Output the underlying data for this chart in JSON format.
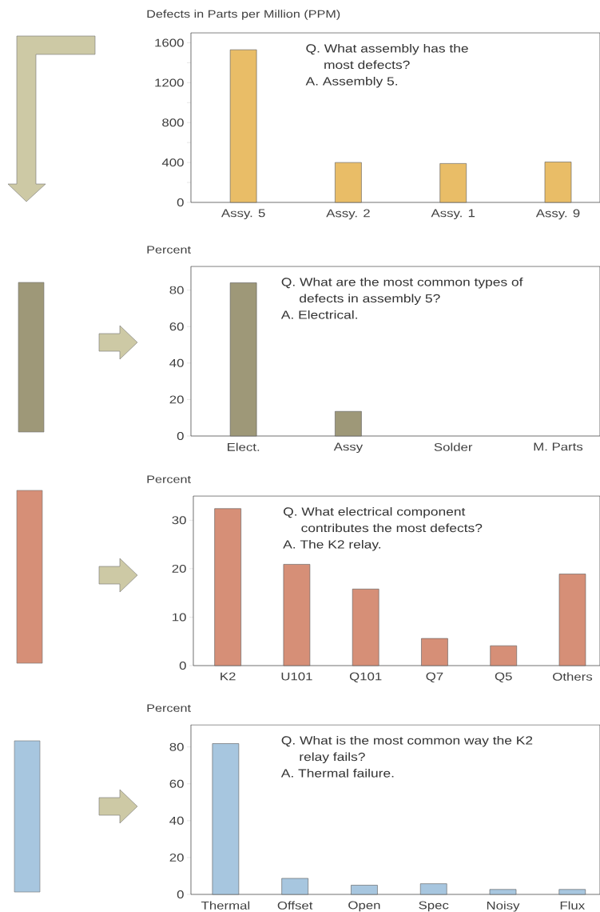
{
  "chart_data": [
    {
      "type": "bar",
      "ylabel": "Defects in Parts per Million (PPM)",
      "categories": [
        "Assy. 5",
        "Assy. 2",
        "Assy. 1",
        "Assy. 9"
      ],
      "values": [
        1530,
        400,
        390,
        405
      ],
      "color": "#e9bd67",
      "ylim": [
        0,
        1700
      ],
      "yticks": [
        0,
        {
          "value": 200,
          "label": null
        },
        400,
        {
          "value": 600,
          "label": null
        },
        800,
        {
          "value": 1000,
          "label": null
        },
        1200,
        {
          "value": 1400,
          "label": null
        },
        1600
      ],
      "annotations": [
        "Q. What assembly has the most defects?",
        "A.  Assembly 5."
      ]
    },
    {
      "type": "bar",
      "ylabel": "Percent",
      "categories": [
        "Elect.",
        "Assy",
        "Solder",
        "M. Parts"
      ],
      "values": [
        84,
        13.5,
        null,
        null
      ],
      "color": "#9e9878",
      "ylim": [
        0,
        93
      ],
      "yticks": [
        0,
        20,
        40,
        60,
        80
      ],
      "annotations": [
        "Q. What are the most common types of defects in assembly 5?",
        "A.  Electrical."
      ]
    },
    {
      "type": "bar",
      "ylabel": "Percent",
      "categories": [
        "K2",
        "U101",
        "Q101",
        "Q7",
        "Q5",
        "Others"
      ],
      "values": [
        32.4,
        20.9,
        15.8,
        5.6,
        4.1,
        18.9
      ],
      "color": "#d68f77",
      "ylim": [
        0,
        35
      ],
      "yticks": [
        0,
        10,
        20,
        30
      ],
      "annotations": [
        "Q.  What electrical component contributes the most defects?",
        "A.  The K2 relay."
      ]
    },
    {
      "type": "bar",
      "ylabel": "Percent",
      "categories": [
        "Thermal",
        "Offset",
        "Open",
        "Spec",
        "Noisy",
        "Flux"
      ],
      "values": [
        81.8,
        8.7,
        5,
        5.8,
        2.7,
        2.7
      ],
      "color": "#a7c6df",
      "ylim": [
        0,
        92
      ],
      "yticks": [
        0,
        20,
        40,
        60,
        80
      ],
      "annotations": [
        "Q.  What is the most common way the K2 relay fails?",
        "A.  Thermal failure."
      ]
    }
  ]
}
